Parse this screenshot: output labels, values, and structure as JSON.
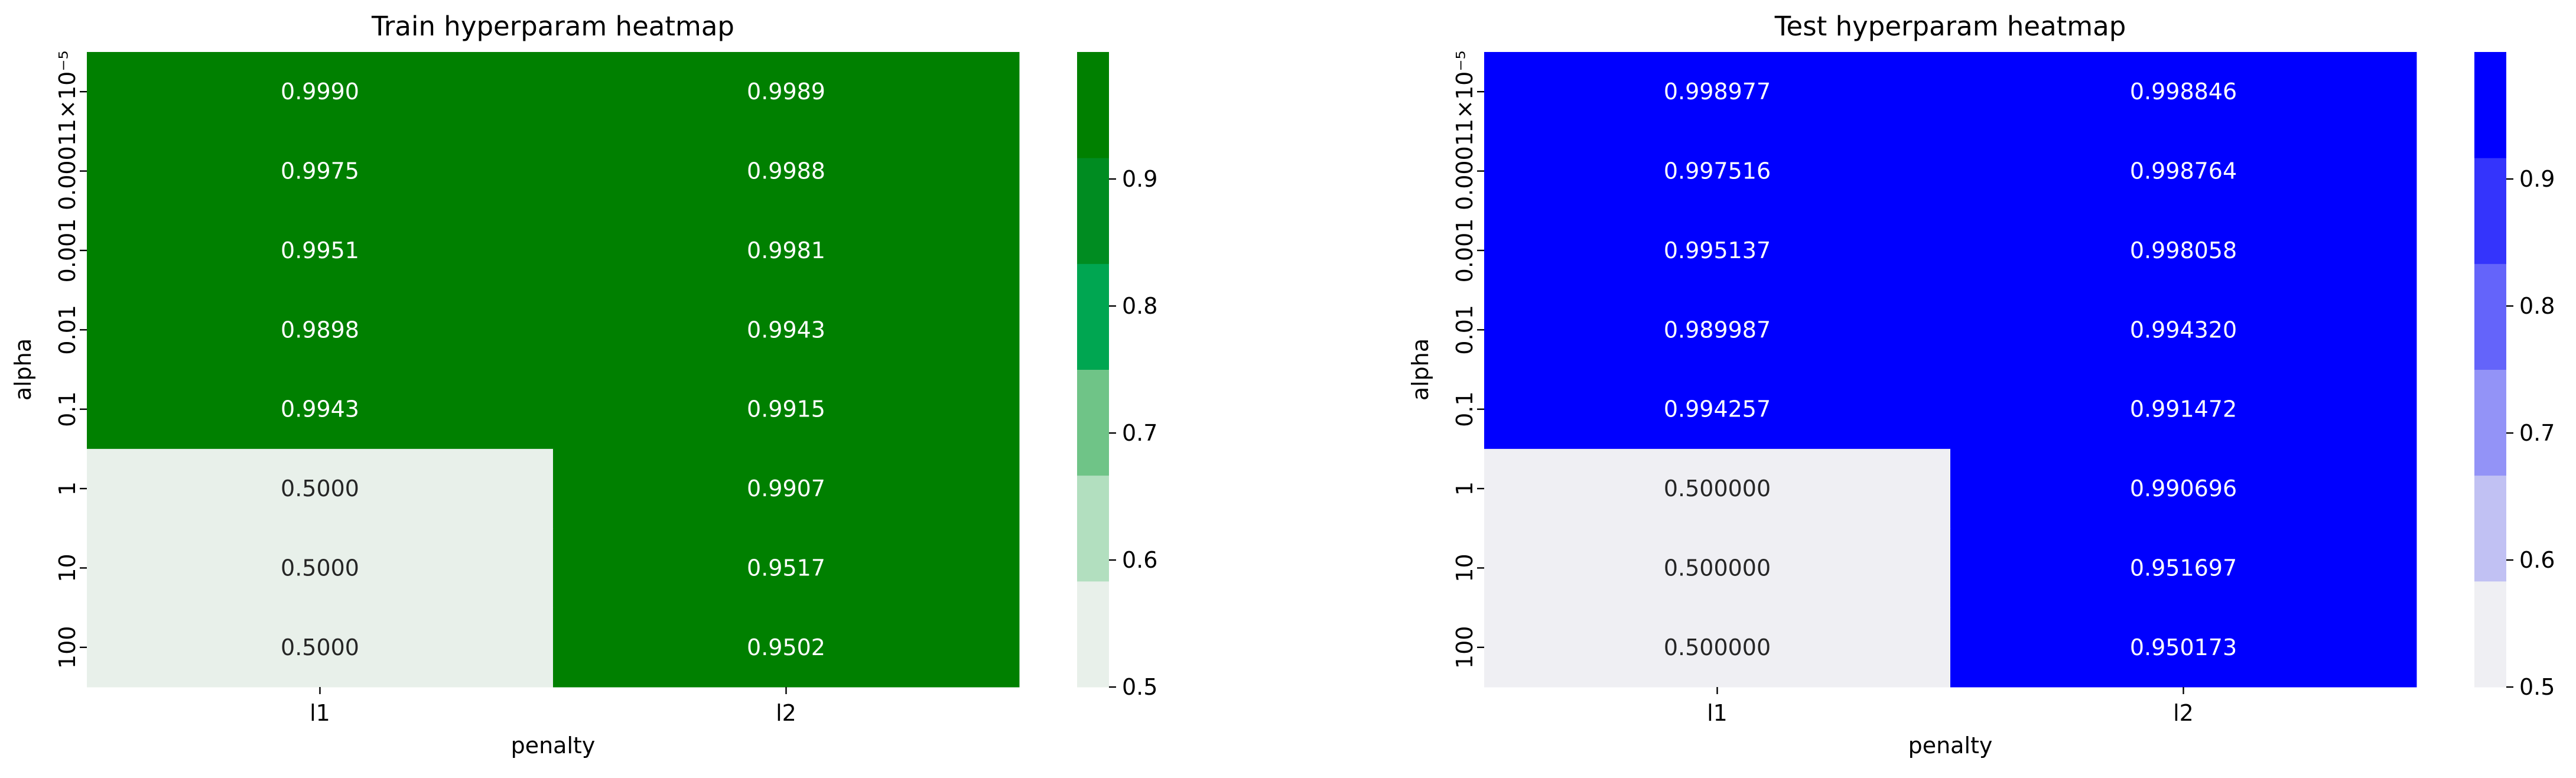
{
  "chart_data": [
    {
      "type": "heatmap",
      "title": "Train hyperparam heatmap",
      "xlabel": "penalty",
      "ylabel": "alpha",
      "x_categories": [
        "l1",
        "l2"
      ],
      "y_categories": [
        "1×10⁻⁵",
        "0.0001",
        "0.001",
        "0.01",
        "0.1",
        "1",
        "10",
        "100"
      ],
      "values": [
        [
          0.999,
          0.9989
        ],
        [
          0.9975,
          0.9988
        ],
        [
          0.9951,
          0.9981
        ],
        [
          0.9898,
          0.9943
        ],
        [
          0.9943,
          0.9915
        ],
        [
          0.5,
          0.9907
        ],
        [
          0.5,
          0.9517
        ],
        [
          0.5,
          0.9502
        ]
      ],
      "annotations": [
        [
          "0.9990",
          "0.9989"
        ],
        [
          "0.9975",
          "0.9988"
        ],
        [
          "0.9951",
          "0.9981"
        ],
        [
          "0.9898",
          "0.9943"
        ],
        [
          "0.9943",
          "0.9915"
        ],
        [
          "0.5000",
          "0.9907"
        ],
        [
          "0.5000",
          "0.9517"
        ],
        [
          "0.5000",
          "0.9502"
        ]
      ],
      "colormap": [
        "#e8f0ea",
        "#b2dfbf",
        "#6fc487",
        "#00a651",
        "#008c21",
        "#008000"
      ],
      "colorbar": {
        "range": [
          0.5,
          1.0
        ],
        "ticks": [
          "0.5",
          "0.6",
          "0.7",
          "0.8",
          "0.9"
        ]
      }
    },
    {
      "type": "heatmap",
      "title": "Test hyperparam heatmap",
      "xlabel": "penalty",
      "ylabel": "alpha",
      "x_categories": [
        "l1",
        "l2"
      ],
      "y_categories": [
        "1×10⁻⁵",
        "0.0001",
        "0.001",
        "0.01",
        "0.1",
        "1",
        "10",
        "100"
      ],
      "values": [
        [
          0.998977,
          0.998846
        ],
        [
          0.997516,
          0.998764
        ],
        [
          0.995137,
          0.998058
        ],
        [
          0.989987,
          0.99432
        ],
        [
          0.994257,
          0.991472
        ],
        [
          0.5,
          0.990696
        ],
        [
          0.5,
          0.951697
        ],
        [
          0.5,
          0.950173
        ]
      ],
      "annotations": [
        [
          "0.998977",
          "0.998846"
        ],
        [
          "0.997516",
          "0.998764"
        ],
        [
          "0.995137",
          "0.998058"
        ],
        [
          "0.989987",
          "0.994320"
        ],
        [
          "0.994257",
          "0.991472"
        ],
        [
          "0.500000",
          "0.990696"
        ],
        [
          "0.500000",
          "0.951697"
        ],
        [
          "0.500000",
          "0.950173"
        ]
      ],
      "colormap": [
        "#efeff3",
        "#c1c1f3",
        "#9393f7",
        "#6464fa",
        "#3434fc",
        "#0000ff"
      ],
      "colorbar": {
        "range": [
          0.5,
          1.0
        ],
        "ticks": [
          "0.5",
          "0.6",
          "0.7",
          "0.8",
          "0.9"
        ]
      }
    }
  ]
}
